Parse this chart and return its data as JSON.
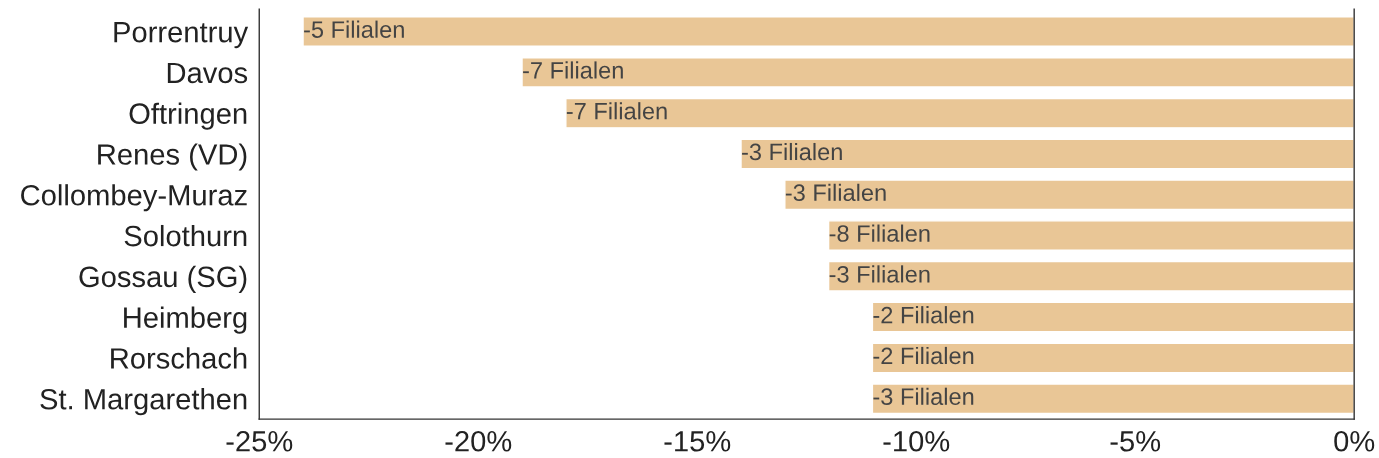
{
  "chart_data": {
    "type": "bar",
    "orientation": "horizontal",
    "categories": [
      "Porrentruy",
      "Davos",
      "Oftringen",
      "Renes (VD)",
      "Collombey-Muraz",
      "Solothurn",
      "Gossau (SG)",
      "Heimberg",
      "Rorschach",
      "St. Margarethen"
    ],
    "values": [
      -24,
      -19,
      -18,
      -14,
      -13,
      -12,
      -12,
      -11,
      -11,
      -11
    ],
    "annotations": [
      {
        "text": "-5 Filialen",
        "x": -24,
        "y": "Porrentruy"
      },
      {
        "text": "-7 Filialen",
        "x": -19,
        "y": "Davos"
      },
      {
        "text": "-7 Filialen",
        "x": -18,
        "y": "Oftringen"
      },
      {
        "text": "-3 Filialen",
        "x": -14,
        "y": "Renes (VD)"
      },
      {
        "text": "-3 Filialen",
        "x": -13,
        "y": "Collombey-Muraz"
      },
      {
        "text": "-8 Filialen",
        "x": -12,
        "y": "Solothurn"
      },
      {
        "text": "-3 Filialen",
        "x": -12,
        "y": "Gossau (SG)"
      },
      {
        "text": "-2 Filialen",
        "x": -11,
        "y": "Heimberg"
      },
      {
        "text": "-2 Filialen",
        "x": -11,
        "y": "Rorschach"
      },
      {
        "text": "-3 Filialen",
        "x": -11,
        "y": "St. Margarethen"
      }
    ],
    "color": "#e9c696",
    "xlim": [
      -25,
      0
    ],
    "xticks": [
      {
        "value": -25,
        "label": "-25%"
      },
      {
        "value": -20,
        "label": "-20%"
      },
      {
        "value": -15,
        "label": "-15%"
      },
      {
        "value": -10,
        "label": "-10%"
      },
      {
        "value": -5,
        "label": "-5%"
      },
      {
        "value": 0,
        "label": "0%"
      }
    ],
    "grid": false,
    "legend": false
  }
}
